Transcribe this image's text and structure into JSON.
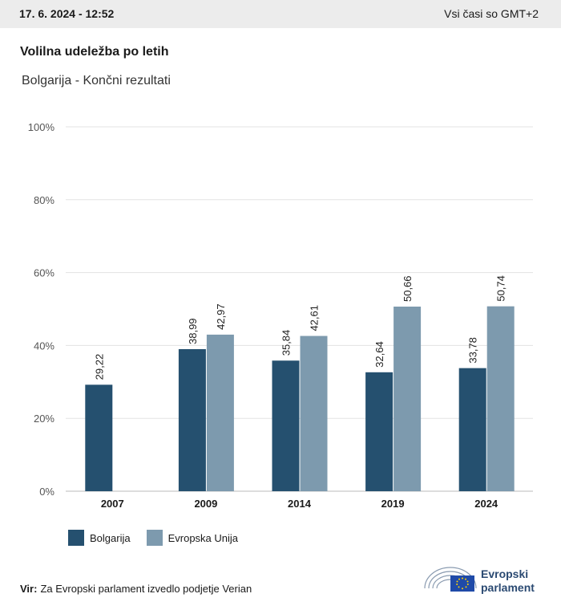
{
  "header": {
    "date": "17. 6. 2024 - 12:52",
    "timezone": "Vsi časi so GMT+2"
  },
  "title": "Volilna udeležba po letih",
  "subtitle": "Bolgarija - Končni rezultati",
  "chart_data": {
    "type": "bar",
    "categories": [
      "2007",
      "2009",
      "2014",
      "2019",
      "2024"
    ],
    "series": [
      {
        "name": "Bolgarija",
        "color": "#25506f",
        "values": [
          29.22,
          38.99,
          35.84,
          32.64,
          33.78
        ],
        "labels": [
          "29,22",
          "38,99",
          "35,84",
          "32,64",
          "33,78"
        ]
      },
      {
        "name": "Evropska Unija",
        "color": "#7d9aae",
        "values": [
          null,
          42.97,
          42.61,
          50.66,
          50.74
        ],
        "labels": [
          "",
          "42,97",
          "42,61",
          "50,66",
          "50,74"
        ]
      }
    ],
    "ylim": [
      0,
      100
    ],
    "yticks": [
      "0%",
      "20%",
      "40%",
      "60%",
      "80%",
      "100%"
    ],
    "grid": true,
    "legend_position": "bottom-left"
  },
  "legend": [
    "Bolgarija",
    "Evropska Unija"
  ],
  "source": {
    "label": "Vir:",
    "text": "Za Evropski parlament izvedlo podjetje Verian"
  },
  "logo": {
    "line1": "Evropski",
    "line2": "parlament"
  }
}
